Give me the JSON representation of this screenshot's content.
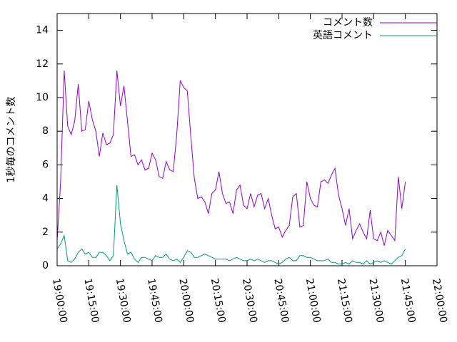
{
  "chart_data": {
    "type": "line",
    "ylabel": "1秒毎のコメント数",
    "x": [
      "19:00:00",
      "19:01:40",
      "19:03:20",
      "19:05:00",
      "19:06:40",
      "19:08:20",
      "19:10:00",
      "19:11:40",
      "19:13:20",
      "19:15:00",
      "19:16:40",
      "19:18:20",
      "19:20:00",
      "19:21:40",
      "19:23:20",
      "19:25:00",
      "19:26:40",
      "19:28:20",
      "19:30:00",
      "19:31:40",
      "19:33:20",
      "19:35:00",
      "19:36:40",
      "19:38:20",
      "19:40:00",
      "19:41:40",
      "19:43:20",
      "19:45:00",
      "19:46:40",
      "19:48:20",
      "19:50:00",
      "19:51:40",
      "19:53:20",
      "19:55:00",
      "19:56:40",
      "19:58:20",
      "20:00:00",
      "20:01:40",
      "20:03:20",
      "20:05:00",
      "20:06:40",
      "20:08:20",
      "20:10:00",
      "20:11:40",
      "20:13:20",
      "20:15:00",
      "20:16:40",
      "20:18:20",
      "20:20:00",
      "20:21:40",
      "20:23:20",
      "20:25:00",
      "20:26:40",
      "20:28:20",
      "20:30:00",
      "20:31:40",
      "20:33:20",
      "20:35:00",
      "20:36:40",
      "20:38:20",
      "20:40:00",
      "20:41:40",
      "20:43:20",
      "20:45:00",
      "20:46:40",
      "20:48:20",
      "20:50:00",
      "20:51:40",
      "20:53:20",
      "20:55:00",
      "20:56:40",
      "20:58:20",
      "21:00:00",
      "21:01:40",
      "21:03:20",
      "21:05:00",
      "21:06:40",
      "21:08:20",
      "21:10:00",
      "21:11:40",
      "21:13:20",
      "21:15:00",
      "21:16:40",
      "21:18:20",
      "21:20:00",
      "21:21:40",
      "21:23:20",
      "21:25:00",
      "21:26:40",
      "21:28:20",
      "21:30:00",
      "21:31:40",
      "21:33:20",
      "21:35:00",
      "21:36:40",
      "21:38:20",
      "21:40:00",
      "21:41:40",
      "21:43:20",
      "21:45:00"
    ],
    "series": [
      {
        "name": "コメント数",
        "color": "#9400d3",
        "values": [
          1.5,
          5,
          11.6,
          8.3,
          7.8,
          8.6,
          10.8,
          8,
          8.1,
          9.8,
          8.7,
          8,
          6.5,
          7.9,
          7.2,
          7.3,
          7.8,
          11.6,
          9.5,
          10.7,
          8.6,
          6.5,
          6.6,
          6,
          6.3,
          5.7,
          5.8,
          6.7,
          6.3,
          5.3,
          5.2,
          6.2,
          5.7,
          5.6,
          7.8,
          11,
          10.6,
          10.4,
          7.7,
          5.2,
          4,
          4.1,
          3.8,
          3.1,
          4.3,
          4.5,
          5.6,
          4.3,
          3.7,
          3.8,
          3.1,
          4.5,
          4.8,
          3.6,
          3.4,
          4.3,
          3.5,
          4.2,
          4.3,
          3.4,
          4,
          3,
          2.2,
          2.3,
          1.7,
          2.1,
          2.4,
          4.1,
          4.3,
          2.3,
          2.4,
          5,
          4,
          3.6,
          3.5,
          5,
          5.1,
          4.9,
          5.4,
          5.8,
          4.2,
          3.4,
          2.4,
          3.4,
          1.6,
          2.1,
          2.5,
          2,
          1.6,
          3.3,
          1.6,
          1.5,
          2,
          1.2,
          2.1,
          1.8,
          1.5,
          5.3,
          3.4,
          5
        ]
      },
      {
        "name": "英語コメント",
        "color": "#009e73",
        "values": [
          1.0,
          1.3,
          1.8,
          0.3,
          0.2,
          0.4,
          0.8,
          1.0,
          0.7,
          0.8,
          0.5,
          0.5,
          0.8,
          0.8,
          0.6,
          0.3,
          0.6,
          4.8,
          2.5,
          1.5,
          0.7,
          0.8,
          0.4,
          0.2,
          0.5,
          0.5,
          0.4,
          0.3,
          0.6,
          0.5,
          0.5,
          0.7,
          0.4,
          0.3,
          0.4,
          0.2,
          0.5,
          0.9,
          0.8,
          0.5,
          0.5,
          0.6,
          0.7,
          0.6,
          0.5,
          0.4,
          0.4,
          0.4,
          0.4,
          0.3,
          0.4,
          0.5,
          0.4,
          0.3,
          0.3,
          0.4,
          0.3,
          0.4,
          0.3,
          0.2,
          0.3,
          0.3,
          0.2,
          0.1,
          0.2,
          0.4,
          0.5,
          0.3,
          0.3,
          0.6,
          0.6,
          0.5,
          0.5,
          0.4,
          0.3,
          0.3,
          0.3,
          0.4,
          0.2,
          0.2,
          0.1,
          0.1,
          0.2,
          0.1,
          0.3,
          0.2,
          0.2,
          0.1,
          0.3,
          0.1,
          0.2,
          0.3,
          0.2,
          0.3,
          0.2,
          0.1,
          0.3,
          0.5,
          0.6,
          1.0
        ]
      }
    ],
    "xlim": [
      "19:00:00",
      "22:00:00"
    ],
    "xticks": [
      "19:00:00",
      "19:15:00",
      "19:30:00",
      "19:45:00",
      "20:00:00",
      "20:15:00",
      "20:30:00",
      "20:45:00",
      "21:00:00",
      "21:15:00",
      "21:30:00",
      "21:45:00",
      "22:00:00"
    ],
    "ylim": [
      0,
      15
    ],
    "yticks": [
      0,
      2,
      4,
      6,
      8,
      10,
      12,
      14
    ],
    "legend": "top-right"
  }
}
